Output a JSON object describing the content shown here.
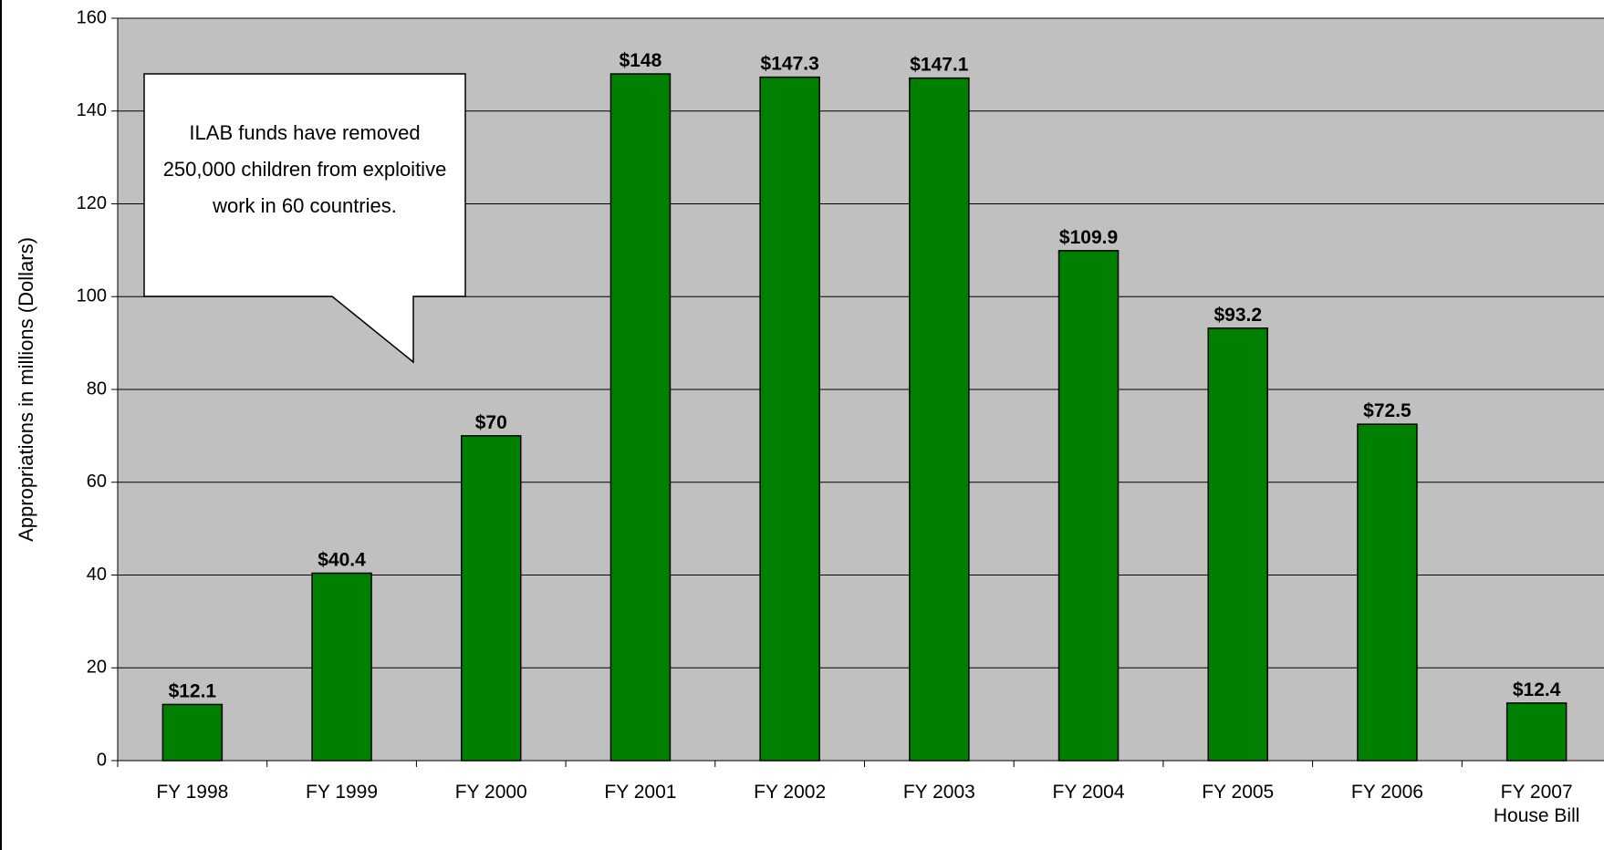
{
  "chart_data": {
    "type": "bar",
    "y_label": "Appropriations in millions (Dollars)",
    "annotation": "ILAB funds have removed 250,000 children from exploitive work in 60 countries.",
    "categories": [
      "FY 1998",
      "FY 1999",
      "FY 2000",
      "FY 2001",
      "FY 2002",
      "FY 2003",
      "FY 2004",
      "FY 2005",
      "FY 2006",
      "FY 2007 House Bill"
    ],
    "values": [
      12.1,
      40.4,
      70,
      148,
      147.3,
      147.1,
      109.9,
      93.2,
      72.5,
      12.4
    ],
    "value_labels": [
      "$12.1",
      "$40.4",
      "$70",
      "$148",
      "$147.3",
      "$147.1",
      "$109.9",
      "$93.2",
      "$72.5",
      "$12.4"
    ],
    "color": "#008000",
    "ylim": [
      0,
      160
    ],
    "yticks": [
      0,
      20,
      40,
      60,
      80,
      100,
      120,
      140,
      160
    ],
    "grid": true
  }
}
